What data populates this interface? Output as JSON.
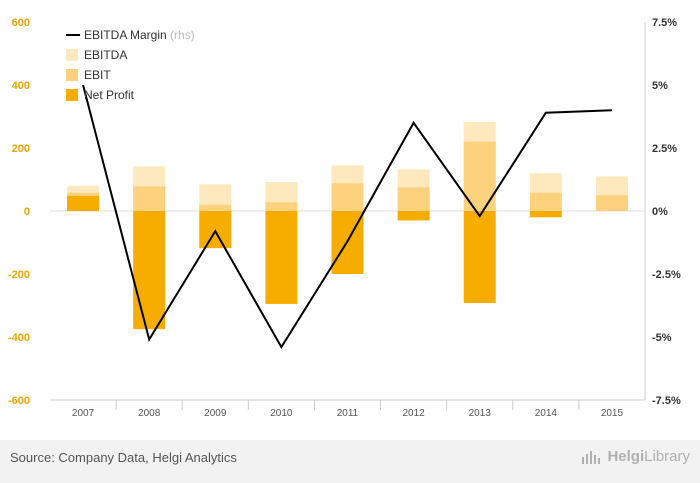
{
  "chart_data": {
    "type": "bar",
    "categories": [
      "2007",
      "2008",
      "2009",
      "2010",
      "2011",
      "2012",
      "2013",
      "2014",
      "2015"
    ],
    "series": [
      {
        "name": "EBITDA",
        "type": "bar",
        "axis": "left",
        "color": "#fde9bd",
        "values": [
          80,
          142,
          85,
          92,
          145,
          132,
          283,
          120,
          110
        ]
      },
      {
        "name": "EBIT",
        "type": "bar",
        "axis": "left",
        "color": "#fdd27e",
        "values": [
          58,
          78,
          20,
          28,
          88,
          75,
          220,
          58,
          50
        ]
      },
      {
        "name": "Net Profit",
        "type": "bar",
        "axis": "left",
        "color": "#f7ad00",
        "values": [
          48,
          -375,
          -118,
          -295,
          -200,
          -30,
          -292,
          -20,
          0
        ]
      },
      {
        "name": "EBITDA Margin",
        "note": "(rhs)",
        "type": "line",
        "axis": "right",
        "color": "#000000",
        "values": [
          5.0,
          -5.1,
          -0.8,
          -5.4,
          -1.2,
          3.5,
          -0.2,
          3.9,
          4.0
        ]
      }
    ],
    "ylim": [
      -600,
      600
    ],
    "yticks": [
      -600,
      -400,
      -200,
      0,
      200,
      400,
      600
    ],
    "y2lim": [
      -7.5,
      7.5
    ],
    "y2ticks": [
      "-7.5%",
      "-5%",
      "-2.5%",
      "0%",
      "2.5%",
      "5%",
      "7.5%"
    ],
    "legend": "top-left",
    "grid": false,
    "title": "",
    "xlabel": "",
    "ylabel": ""
  },
  "footer": {
    "source": "Source: Company Data, Helgi Analytics",
    "brand_name": "Helgi",
    "brand_suffix": "Library",
    "brand_icon": "helgi-library-logo-icon"
  }
}
